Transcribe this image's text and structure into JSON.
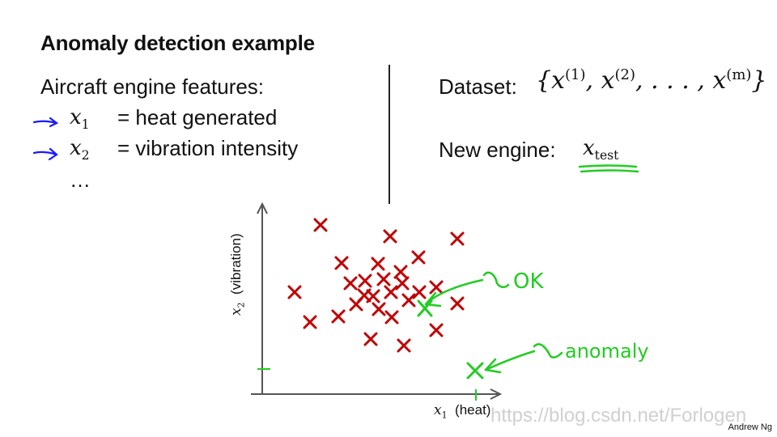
{
  "slide": {
    "title": "Anomaly detection example",
    "features_heading": "Aircraft engine features:",
    "features": [
      {
        "symbol": "x",
        "sub": "1",
        "desc": "= heat generated"
      },
      {
        "symbol": "x",
        "sub": "2",
        "desc": "= vibration intensity"
      }
    ],
    "ellipsis": "…",
    "dataset_label": "Dataset:",
    "new_engine_label": "New engine:",
    "new_engine_symbol": "x",
    "new_engine_sub": "test",
    "credit": "Andrew Ng",
    "watermark": "https://blog.csdn.net/Forlogen"
  },
  "chart_data": {
    "type": "scatter",
    "xlabel_symbol": "x",
    "xlabel_sub": "1",
    "xlabel_text": "(heat)",
    "ylabel_symbol": "x",
    "ylabel_sub": "2",
    "ylabel_text": "(vibration)",
    "series": [
      {
        "color": "#c00000",
        "points": [
          [
            364,
            361
          ],
          [
            383,
            398
          ],
          [
            396,
            278
          ],
          [
            418,
            391
          ],
          [
            422,
            325
          ],
          [
            433,
            350
          ],
          [
            440,
            376
          ],
          [
            451,
            347
          ],
          [
            458,
            419
          ],
          [
            461,
            366
          ],
          [
            467,
            326
          ],
          [
            468,
            382
          ],
          [
            474,
            345
          ],
          [
            482,
            292
          ],
          [
            483,
            361
          ],
          [
            484,
            392
          ],
          [
            495,
            336
          ],
          [
            497,
            350
          ],
          [
            499,
            427
          ],
          [
            505,
            371
          ],
          [
            517,
            318
          ],
          [
            518,
            361
          ],
          [
            539,
            355
          ],
          [
            539,
            408
          ],
          [
            565,
            295
          ],
          [
            565,
            375
          ],
          [
            450,
            365
          ]
        ]
      }
    ],
    "annotations": [
      {
        "label": "OK",
        "color": "#22cc22"
      },
      {
        "label": "anomaly",
        "color": "#22cc22"
      }
    ]
  }
}
